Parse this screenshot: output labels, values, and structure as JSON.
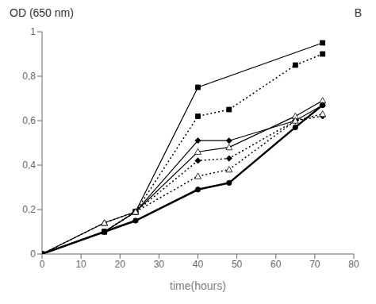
{
  "chart_data": {
    "type": "line",
    "ylabel": "OD (650 nm)",
    "annotations": [
      "B"
    ],
    "xlabel": "time(hours)",
    "xlim": [
      0,
      80
    ],
    "ylim": [
      0,
      1
    ],
    "xticks": [
      0,
      10,
      20,
      30,
      40,
      50,
      60,
      70,
      80
    ],
    "yticks": [
      0,
      {
        "value": 0.2,
        "label": "0,2"
      },
      {
        "value": 0.4,
        "label": "0,4"
      },
      {
        "value": 0.6,
        "label": "0,6"
      },
      {
        "value": 0.8,
        "label": "0,8"
      },
      1
    ],
    "grid": false,
    "series": [
      {
        "color": "black",
        "marker": "square",
        "line_style": "solid",
        "x": [
          0,
          16,
          24,
          40,
          72
        ],
        "values": [
          0,
          0.1,
          0.19,
          0.75,
          0.95
        ]
      },
      {
        "color": "black",
        "marker": "square",
        "line_style": "dotted",
        "x": [
          0,
          16,
          24,
          40,
          48,
          65,
          72
        ],
        "values": [
          0,
          0.1,
          0.19,
          0.62,
          0.65,
          0.85,
          0.9
        ]
      },
      {
        "color": "black",
        "marker": "diamond",
        "line_style": "solid",
        "x": [
          0,
          16,
          24,
          40,
          48,
          65,
          72
        ],
        "values": [
          0,
          0.1,
          0.19,
          0.51,
          0.51,
          0.6,
          0.67
        ]
      },
      {
        "color": "black",
        "marker": "diamond",
        "line_style": "dotted",
        "x": [
          0,
          16,
          24,
          40,
          48,
          65,
          72
        ],
        "values": [
          0,
          0.1,
          0.19,
          0.42,
          0.43,
          0.6,
          0.62
        ]
      },
      {
        "color": "black",
        "marker": "triangle-open",
        "line_style": "solid",
        "x": [
          0,
          16,
          24,
          40,
          48,
          65,
          72
        ],
        "values": [
          0,
          0.14,
          0.19,
          0.46,
          0.48,
          0.62,
          0.69
        ]
      },
      {
        "color": "black",
        "marker": "triangle-open",
        "line_style": "dotted",
        "x": [
          0,
          16,
          24,
          40,
          48,
          65,
          72
        ],
        "values": [
          0,
          0.14,
          0.19,
          0.35,
          0.38,
          0.6,
          0.63
        ]
      },
      {
        "color": "black",
        "marker": "circle",
        "line_style": "solid",
        "x": [
          0,
          16,
          24,
          40,
          48,
          65,
          72
        ],
        "values": [
          0,
          0.1,
          0.15,
          0.29,
          0.32,
          0.57,
          0.67
        ]
      }
    ]
  }
}
